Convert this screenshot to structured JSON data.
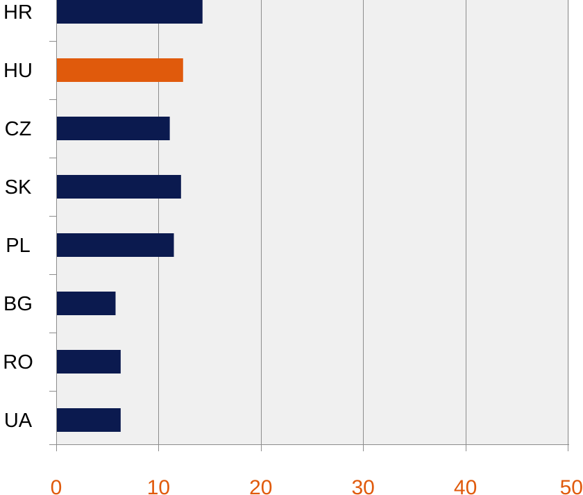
{
  "chart_data": {
    "type": "bar",
    "orientation": "horizontal",
    "categories": [
      "HR",
      "HU",
      "CZ",
      "SK",
      "PL",
      "BG",
      "RO",
      "UA"
    ],
    "values": [
      14.3,
      12.4,
      11.1,
      12.2,
      11.5,
      5.8,
      6.3,
      6.3
    ],
    "highlight_category": "HU",
    "xlim": [
      0,
      50
    ],
    "xticks": [
      0,
      10,
      20,
      30,
      40,
      50
    ],
    "xtick_labels": [
      "0",
      "10",
      "20",
      "30",
      "40",
      "50"
    ],
    "grid": "vertical",
    "title": "",
    "xlabel": "",
    "ylabel": "",
    "colors": {
      "bar": "#0b1a4f",
      "highlight": "#e05a0c",
      "plot_background": "#f0f0f0",
      "gridline": "#8c8c8c",
      "axis": "#8c8c8c",
      "tick_label": "#e05a0c",
      "category_label": "#000000"
    }
  }
}
